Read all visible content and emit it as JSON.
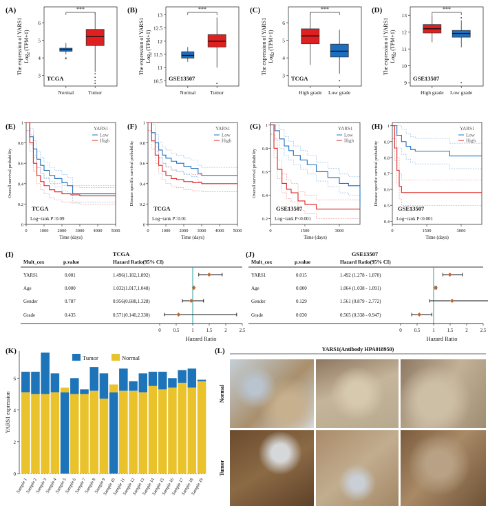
{
  "figure": {
    "panel_labels": [
      "(A)",
      "(B)",
      "(C)",
      "(D)",
      "(E)",
      "(F)",
      "(G)",
      "(H)",
      "(I)",
      "(J)",
      "(K)",
      "(L)"
    ],
    "boxplot_ylabel_line1": "The expression of YARS1",
    "boxplot_ylabel_line2": "Log",
    "boxplot_ylabel_sub": "2",
    "boxplot_ylabel_tail": " (TPM+1)",
    "significance": "***"
  },
  "colors": {
    "red": "#e02020",
    "blue": "#1b6fc0",
    "tumor_bar": "#1d74b8",
    "normal_bar": "#e9c22c"
  },
  "chart_data": [
    {
      "id": "A",
      "type": "box",
      "dataset_label": "TCGA",
      "categories": [
        "Normal",
        "Tumor"
      ],
      "yticks": [
        3,
        4,
        5,
        6
      ],
      "ylim": [
        2.4,
        6.9
      ],
      "boxes": [
        {
          "min": 4.2,
          "q1": 4.38,
          "median": 4.47,
          "q3": 4.55,
          "max": 4.85,
          "outliers": [
            4.0,
            3.95
          ],
          "color": "blue"
        },
        {
          "min": 3.2,
          "q1": 4.7,
          "median": 5.22,
          "q3": 5.62,
          "max": 6.6,
          "outliers": [
            3.1,
            2.9,
            2.7,
            2.55
          ],
          "color": "red"
        }
      ]
    },
    {
      "id": "B",
      "type": "box",
      "dataset_label": "GSE13507",
      "categories": [
        "Normal",
        "Tumor"
      ],
      "yticks": [
        10.5,
        11.0,
        11.5,
        12.0,
        12.5,
        13.0
      ],
      "ylim": [
        10.3,
        13.3
      ],
      "boxes": [
        {
          "min": 11.22,
          "q1": 11.36,
          "median": 11.46,
          "q3": 11.6,
          "max": 11.78,
          "outliers": [],
          "color": "blue"
        },
        {
          "min": 11.0,
          "q1": 11.78,
          "median": 12.0,
          "q3": 12.25,
          "max": 12.9,
          "outliers": [
            10.4
          ],
          "color": "red"
        }
      ]
    },
    {
      "id": "C",
      "type": "box",
      "dataset_label": "TCGA",
      "categories": [
        "High grade",
        "Low grade"
      ],
      "yticks": [
        3,
        4,
        5,
        6
      ],
      "ylim": [
        2.4,
        6.9
      ],
      "boxes": [
        {
          "min": 3.6,
          "q1": 4.8,
          "median": 5.25,
          "q3": 5.65,
          "max": 6.6,
          "outliers": [],
          "color": "red"
        },
        {
          "min": 3.1,
          "q1": 4.05,
          "median": 4.38,
          "q3": 4.78,
          "max": 5.6,
          "outliers": [
            2.7
          ],
          "color": "blue"
        }
      ]
    },
    {
      "id": "D",
      "type": "box",
      "dataset_label": "GSE13507",
      "categories": [
        "High grade",
        "Low grade"
      ],
      "yticks": [
        9,
        10,
        11,
        12,
        13
      ],
      "ylim": [
        8.8,
        13.5
      ],
      "boxes": [
        {
          "min": 11.4,
          "q1": 11.95,
          "median": 12.2,
          "q3": 12.45,
          "max": 13.0,
          "outliers": [],
          "color": "red"
        },
        {
          "min": 11.1,
          "q1": 11.7,
          "median": 11.92,
          "q3": 12.1,
          "max": 12.7,
          "outliers": [
            12.85,
            9.0
          ],
          "color": "blue"
        }
      ]
    },
    {
      "id": "E",
      "type": "line",
      "title": "",
      "ylabel": "Overall survival probability",
      "xlabel": "Time (days)",
      "dataset_label": "TCGA",
      "pvalue": "Log−rank P=0.09",
      "xticks": [
        0,
        1000,
        2000,
        3000,
        4000,
        5000
      ],
      "yticks": [
        0.0,
        0.2,
        0.4,
        0.6,
        0.8,
        1.0
      ],
      "xlim": [
        0,
        5000
      ],
      "ylim": [
        0,
        1
      ],
      "legend_title": "YARS1",
      "legend": [
        "Low",
        "High"
      ],
      "series": [
        {
          "name": "Low",
          "x": [
            0,
            200,
            400,
            600,
            800,
            1000,
            1300,
            1600,
            2000,
            2300,
            2600,
            3000,
            5000
          ],
          "y": [
            1,
            0.86,
            0.74,
            0.64,
            0.58,
            0.53,
            0.48,
            0.45,
            0.41,
            0.38,
            0.3,
            0.3,
            0.3
          ]
        },
        {
          "name": "High",
          "x": [
            0,
            200,
            400,
            600,
            800,
            1000,
            1300,
            1600,
            2000,
            2500,
            3000,
            5000
          ],
          "y": [
            1,
            0.8,
            0.6,
            0.48,
            0.42,
            0.38,
            0.34,
            0.32,
            0.3,
            0.29,
            0.28,
            0.28
          ]
        }
      ]
    },
    {
      "id": "F",
      "type": "line",
      "title": "",
      "ylabel": "Disease specific survival probability",
      "xlabel": "Time (days)",
      "dataset_label": "TCGA",
      "pvalue": "Log−rank P=0.01",
      "xticks": [
        0,
        1000,
        2000,
        3000,
        4000,
        5000
      ],
      "yticks": [
        0.0,
        0.2,
        0.4,
        0.6,
        0.8,
        1.0
      ],
      "xlim": [
        0,
        5000
      ],
      "ylim": [
        0,
        1
      ],
      "legend_title": "YARS1",
      "legend": [
        "Low",
        "High"
      ],
      "series": [
        {
          "name": "Low",
          "x": [
            0,
            200,
            400,
            600,
            800,
            1000,
            1300,
            1600,
            2000,
            2400,
            2800,
            3000,
            5000
          ],
          "y": [
            1,
            0.9,
            0.8,
            0.73,
            0.68,
            0.65,
            0.62,
            0.6,
            0.57,
            0.55,
            0.5,
            0.48,
            0.48
          ]
        },
        {
          "name": "High",
          "x": [
            0,
            200,
            400,
            600,
            800,
            1000,
            1300,
            1600,
            2000,
            2500,
            3000,
            5000
          ],
          "y": [
            1,
            0.82,
            0.68,
            0.58,
            0.52,
            0.48,
            0.45,
            0.44,
            0.42,
            0.41,
            0.4,
            0.4
          ]
        }
      ]
    },
    {
      "id": "G",
      "type": "line",
      "title": "",
      "ylabel": "Overall survival probability",
      "xlabel": "Time (days)",
      "dataset_label": "GSE13507",
      "pvalue": "Log−rank P<0.001",
      "xticks": [
        0,
        1500,
        3000
      ],
      "yticks": [
        0.2,
        0.4,
        0.6,
        0.8,
        1.0
      ],
      "xlim": [
        0,
        3900
      ],
      "ylim": [
        0.15,
        1.02
      ],
      "legend_title": "YARS1",
      "legend": [
        "Low",
        "High"
      ],
      "series": [
        {
          "name": "Low",
          "x": [
            0,
            200,
            400,
            600,
            800,
            1000,
            1300,
            1600,
            2000,
            2500,
            3000,
            3400,
            3900
          ],
          "y": [
            1,
            0.95,
            0.88,
            0.82,
            0.78,
            0.74,
            0.7,
            0.66,
            0.6,
            0.55,
            0.5,
            0.48,
            0.33
          ]
        },
        {
          "name": "High",
          "x": [
            0,
            150,
            300,
            500,
            700,
            900,
            1200,
            1500,
            2000,
            3900
          ],
          "y": [
            1,
            0.8,
            0.62,
            0.5,
            0.45,
            0.42,
            0.35,
            0.32,
            0.28,
            0.28
          ]
        }
      ]
    },
    {
      "id": "H",
      "type": "line",
      "title": "",
      "ylabel": "Disease specific survival probability",
      "xlabel": "Time (days)",
      "dataset_label": "GSE13507",
      "pvalue": "Log−rank P<0.001",
      "xticks": [
        0,
        1500,
        3000
      ],
      "yticks": [
        0.4,
        0.5,
        0.6,
        0.7,
        0.8,
        0.9,
        1.0
      ],
      "xlim": [
        0,
        3900
      ],
      "ylim": [
        0.38,
        1.02
      ],
      "legend_title": "YARS1",
      "legend": [
        "Low",
        "High"
      ],
      "series": [
        {
          "name": "Low",
          "x": [
            0,
            200,
            400,
            600,
            800,
            1000,
            1500,
            2000,
            2500,
            3900
          ],
          "y": [
            1,
            0.94,
            0.9,
            0.87,
            0.85,
            0.84,
            0.84,
            0.84,
            0.81,
            0.81
          ]
        },
        {
          "name": "High",
          "x": [
            0,
            100,
            200,
            300,
            400,
            3900
          ],
          "y": [
            1,
            0.86,
            0.72,
            0.62,
            0.58,
            0.58
          ]
        }
      ]
    },
    {
      "id": "I",
      "type": "forest",
      "title": "TCGA",
      "columns": [
        "Mult_cox",
        "p.value",
        "Hazard Ratio(95% CI)"
      ],
      "rows": [
        {
          "name": "YARS1",
          "p": "0.001",
          "hr_text": "1.496(1.182,1.892)",
          "hr": 1.496,
          "lo": 1.182,
          "hi": 1.892
        },
        {
          "name": "Age",
          "p": "0.000",
          "hr_text": "1.032(1.017,1.048)",
          "hr": 1.032,
          "lo": 1.017,
          "hi": 1.048
        },
        {
          "name": "Gender",
          "p": "0.787",
          "hr_text": "0.956(0.688,1.328)",
          "hr": 0.956,
          "lo": 0.688,
          "hi": 1.328
        },
        {
          "name": "Grade",
          "p": "0.435",
          "hr_text": "0.571(0.140,2.330)",
          "hr": 0.571,
          "lo": 0.14,
          "hi": 2.33
        }
      ],
      "xticks": [
        0,
        0.5,
        1,
        1.5,
        2,
        2.5
      ],
      "xlabel": "Hazard Ratio"
    },
    {
      "id": "J",
      "type": "forest",
      "title": "GSE13507",
      "columns": [
        "Mult_cox",
        "p.value",
        "Hazard Ratio(95% CI)"
      ],
      "rows": [
        {
          "name": "YARS1",
          "p": "0.015",
          "hr_text": "1.492 (1.278 - 1.870)",
          "hr": 1.492,
          "lo": 1.278,
          "hi": 1.87
        },
        {
          "name": "Age",
          "p": "0.000",
          "hr_text": "1.064 (1.038 - 1.091)",
          "hr": 1.064,
          "lo": 1.038,
          "hi": 1.091
        },
        {
          "name": "Gender",
          "p": "0.129",
          "hr_text": "1.561 (0.879 - 2.772)",
          "hr": 1.561,
          "lo": 0.879,
          "hi": 2.772
        },
        {
          "name": "Grade",
          "p": "0.030",
          "hr_text": "0.565 (0.338 - 0.947)",
          "hr": 0.565,
          "lo": 0.338,
          "hi": 0.947
        }
      ],
      "xticks": [
        0,
        0.5,
        1,
        1.5,
        2,
        2.5
      ],
      "xlabel": "Hazard Ratio"
    },
    {
      "id": "K",
      "type": "bar",
      "ylabel": "YARS1 expression",
      "legend": [
        "Tumor",
        "Normal"
      ],
      "yticks": [
        0,
        2,
        4,
        6
      ],
      "ylim": [
        0,
        7.7
      ],
      "categories": [
        "Sample 1",
        "Sample 2",
        "Sample 3",
        "Sample 4",
        "Sample 5",
        "Sample 6",
        "Sample 7",
        "Sample 8",
        "Sample 9",
        "Sample 10",
        "Sample 11",
        "Sample 12",
        "Sample 13",
        "Sample 14",
        "Sample 15",
        "Sample 16",
        "Sample 17",
        "Sample 18",
        "Sample 19"
      ],
      "series": [
        {
          "name": "Tumor",
          "values": [
            6.4,
            6.4,
            7.6,
            6.3,
            5.1,
            6.0,
            5.3,
            6.7,
            6.3,
            5.1,
            6.6,
            5.8,
            6.3,
            6.4,
            6.4,
            6.0,
            6.5,
            6.6,
            5.9
          ]
        },
        {
          "name": "Normal",
          "values": [
            5.1,
            5.0,
            5.0,
            5.1,
            5.4,
            5.0,
            5.0,
            5.2,
            4.7,
            5.6,
            5.2,
            5.2,
            5.1,
            5.5,
            5.3,
            5.4,
            5.7,
            5.4,
            5.8
          ]
        }
      ]
    }
  ],
  "ihc": {
    "title": "YARS1(Antibody HPA018950)",
    "row_labels": [
      "Normal",
      "Tumor"
    ]
  }
}
